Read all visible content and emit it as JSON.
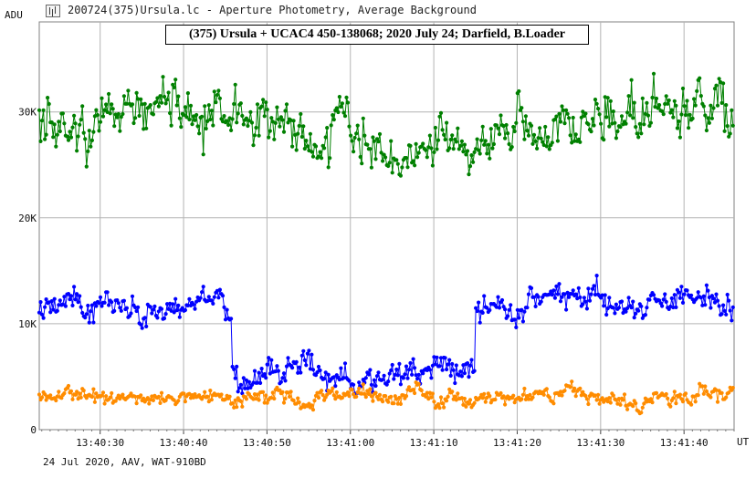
{
  "window": {
    "title": "200724(375)Ursula.lc - Aperture Photometry, Average Background",
    "icon": "lightcurve-app-icon"
  },
  "footer": {
    "text": "24 Jul 2020, AAV, WAT-910BD"
  },
  "chart_data": {
    "type": "line",
    "title": "(375) Ursula + UCAC4 450-138068; 2020 July 24; Darfield, B.Loader",
    "ylabel": "ADU",
    "xlabel": "UT",
    "ylim": [
      0,
      38500
    ],
    "yticks": [
      0,
      10000,
      20000,
      30000
    ],
    "ytick_labels": [
      "0",
      "10K",
      "20K",
      "30K"
    ],
    "xlim": [
      "13:40:22.7",
      "13:41:46.0"
    ],
    "xticks": [
      "13:40:30",
      "13:40:40",
      "13:40:50",
      "13:41:00",
      "13:41:10",
      "13:41:20",
      "13:41:30",
      "13:41:40"
    ],
    "grid": true,
    "markers": true,
    "series": [
      {
        "color": "#008000",
        "description": "comparison star",
        "approx_mean": 28500,
        "noise_range": [
          23000,
          36800
        ],
        "points_per_second": 6
      },
      {
        "color": "#0000ff",
        "description": "target (occultation drop)",
        "segments": [
          {
            "from": "13:40:22.7",
            "to": "13:40:45.8",
            "level": 11600
          },
          {
            "from": "13:40:46.0",
            "to": "13:41:15.0",
            "level": 5300
          },
          {
            "from": "13:41:15.2",
            "to": "13:41:46.0",
            "level": 11900
          }
        ],
        "noise_range": [
          3400,
          14600
        ],
        "points_per_second": 6
      },
      {
        "color": "#ff8c00",
        "description": "background",
        "approx_mean": 3200,
        "noise_range": [
          1000,
          5200
        ],
        "points_per_second": 6
      }
    ]
  }
}
